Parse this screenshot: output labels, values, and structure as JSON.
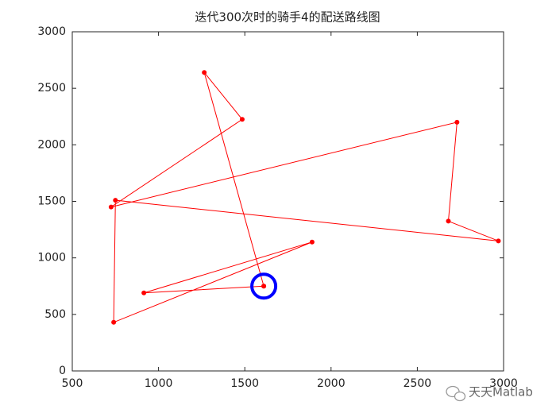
{
  "chart_data": {
    "type": "line",
    "title": "迭代300次时的骑手4的配送路线图",
    "x": [
      1610,
      1265,
      1485,
      725,
      2730,
      2680,
      2970,
      750,
      740,
      1890,
      915,
      1610
    ],
    "values": [
      750,
      2640,
      2225,
      1450,
      2200,
      1325,
      1150,
      1510,
      430,
      1140,
      690,
      750
    ],
    "color": "#ff0000",
    "depot": {
      "x": 1610,
      "y": 750,
      "color": "#0000ff"
    },
    "xlim": [
      500,
      3000
    ],
    "xticks": [
      500,
      1000,
      1500,
      2000,
      2500,
      3000
    ],
    "ylim": [
      0,
      3000
    ],
    "yticks": [
      0,
      500,
      1000,
      1500,
      2000,
      2500,
      3000
    ],
    "watermark": "天天Matlab"
  }
}
